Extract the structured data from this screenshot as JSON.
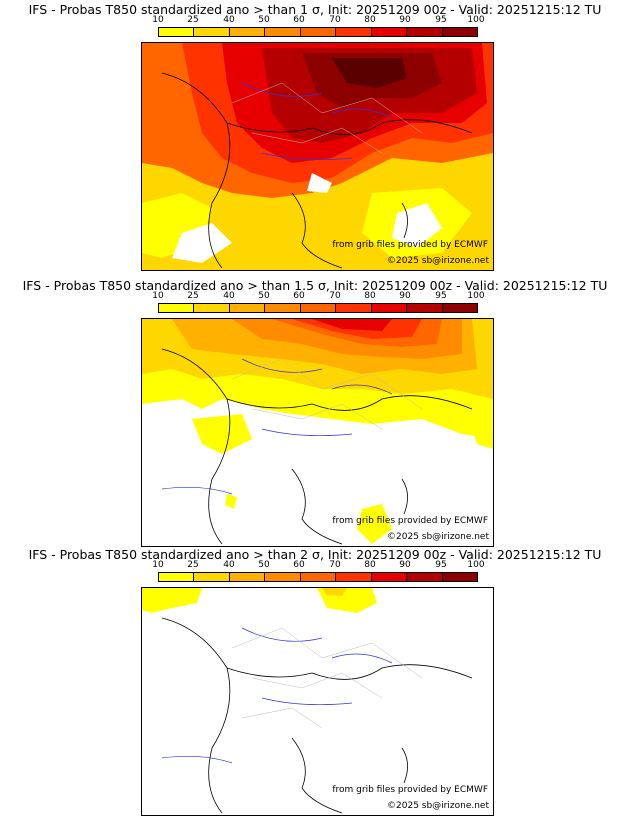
{
  "colorbar": {
    "labels": [
      "10",
      "25",
      "40",
      "50",
      "60",
      "70",
      "80",
      "90",
      "95",
      "100"
    ],
    "colors": [
      "#ffff00",
      "#ffd700",
      "#ffb000",
      "#ff8c00",
      "#ff6600",
      "#ff3300",
      "#e60000",
      "#b40000",
      "#8c0000",
      "#5a0000"
    ]
  },
  "panels": [
    {
      "title": "IFS - Probas T850  standardized ano > than 1 σ, Init: 20251209 00z - Valid: 20251215:12 TU",
      "threshold_sigma": "1",
      "credit_source": "from grib files provided by ECMWF",
      "credit_copy": "©2025 sb@irizone.net"
    },
    {
      "title": "IFS - Probas T850  standardized ano > than 1.5 σ, Init: 20251209 00z - Valid: 20251215:12 TU",
      "threshold_sigma": "1.5",
      "credit_source": "from grib files provided by ECMWF",
      "credit_copy": "©2025 sb@irizone.net"
    },
    {
      "title": "IFS - Probas T850  standardized ano > than 2 σ, Init: 20251209 00z - Valid: 20251215:12 TU",
      "threshold_sigma": "2",
      "credit_source": "from grib files provided by ECMWF",
      "credit_copy": "©2025 sb@irizone.net"
    }
  ]
}
